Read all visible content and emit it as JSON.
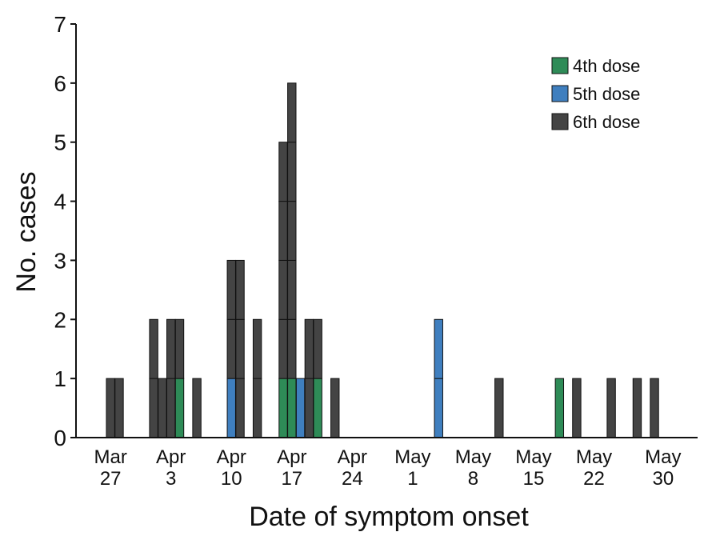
{
  "chart_data": {
    "type": "bar",
    "stacked": true,
    "xlabel": "Date of symptom onset",
    "ylabel": "No. cases",
    "ylim": [
      0,
      7
    ],
    "y_ticks": [
      0,
      1,
      2,
      3,
      4,
      5,
      6,
      7
    ],
    "x_ticks": [
      {
        "date": "Mar 27",
        "line1": "Mar",
        "line2": "27"
      },
      {
        "date": "Apr 3",
        "line1": "Apr",
        "line2": "3"
      },
      {
        "date": "Apr 10",
        "line1": "Apr",
        "line2": "10"
      },
      {
        "date": "Apr 17",
        "line1": "Apr",
        "line2": "17"
      },
      {
        "date": "Apr 24",
        "line1": "Apr",
        "line2": "24"
      },
      {
        "date": "May 1",
        "line1": "May",
        "line2": "1"
      },
      {
        "date": "May 8",
        "line1": "May",
        "line2": "8"
      },
      {
        "date": "May 15",
        "line1": "May",
        "line2": "15"
      },
      {
        "date": "May 22",
        "line1": "May",
        "line2": "22"
      },
      {
        "date": "May 30",
        "line1": "May",
        "line2": "30"
      }
    ],
    "x_range": [
      "Mar 23",
      "Jun 3"
    ],
    "grid": false,
    "legend_position": "top-right",
    "series": [
      {
        "name": "4th dose",
        "color": "#2e8b57"
      },
      {
        "name": "5th dose",
        "color": "#3f7fbf"
      },
      {
        "name": "6th dose",
        "color": "#444444"
      }
    ],
    "cases": [
      {
        "date": "Mar 27",
        "dose4": 0,
        "dose5": 0,
        "dose6": 1
      },
      {
        "date": "Mar 28",
        "dose4": 0,
        "dose5": 0,
        "dose6": 1
      },
      {
        "date": "Apr 1",
        "dose4": 0,
        "dose5": 0,
        "dose6": 2
      },
      {
        "date": "Apr 2",
        "dose4": 0,
        "dose5": 0,
        "dose6": 1
      },
      {
        "date": "Apr 3",
        "dose4": 0,
        "dose5": 0,
        "dose6": 2
      },
      {
        "date": "Apr 4",
        "dose4": 1,
        "dose5": 0,
        "dose6": 1
      },
      {
        "date": "Apr 6",
        "dose4": 0,
        "dose5": 0,
        "dose6": 1
      },
      {
        "date": "Apr 10",
        "dose4": 0,
        "dose5": 1,
        "dose6": 2
      },
      {
        "date": "Apr 11",
        "dose4": 0,
        "dose5": 0,
        "dose6": 3
      },
      {
        "date": "Apr 13",
        "dose4": 0,
        "dose5": 0,
        "dose6": 2
      },
      {
        "date": "Apr 16",
        "dose4": 1,
        "dose5": 0,
        "dose6": 4
      },
      {
        "date": "Apr 17",
        "dose4": 1,
        "dose5": 0,
        "dose6": 5
      },
      {
        "date": "Apr 18",
        "dose4": 0,
        "dose5": 1,
        "dose6": 0
      },
      {
        "date": "Apr 19",
        "dose4": 0,
        "dose5": 0,
        "dose6": 2
      },
      {
        "date": "Apr 20",
        "dose4": 1,
        "dose5": 0,
        "dose6": 1
      },
      {
        "date": "Apr 22",
        "dose4": 0,
        "dose5": 0,
        "dose6": 1
      },
      {
        "date": "May 4",
        "dose4": 0,
        "dose5": 2,
        "dose6": 0
      },
      {
        "date": "May 11",
        "dose4": 0,
        "dose5": 0,
        "dose6": 1
      },
      {
        "date": "May 18",
        "dose4": 1,
        "dose5": 0,
        "dose6": 0
      },
      {
        "date": "May 20",
        "dose4": 0,
        "dose5": 0,
        "dose6": 1
      },
      {
        "date": "May 24",
        "dose4": 0,
        "dose5": 0,
        "dose6": 1
      },
      {
        "date": "May 27",
        "dose4": 0,
        "dose5": 0,
        "dose6": 1
      },
      {
        "date": "May 29",
        "dose4": 0,
        "dose5": 0,
        "dose6": 1
      }
    ]
  }
}
